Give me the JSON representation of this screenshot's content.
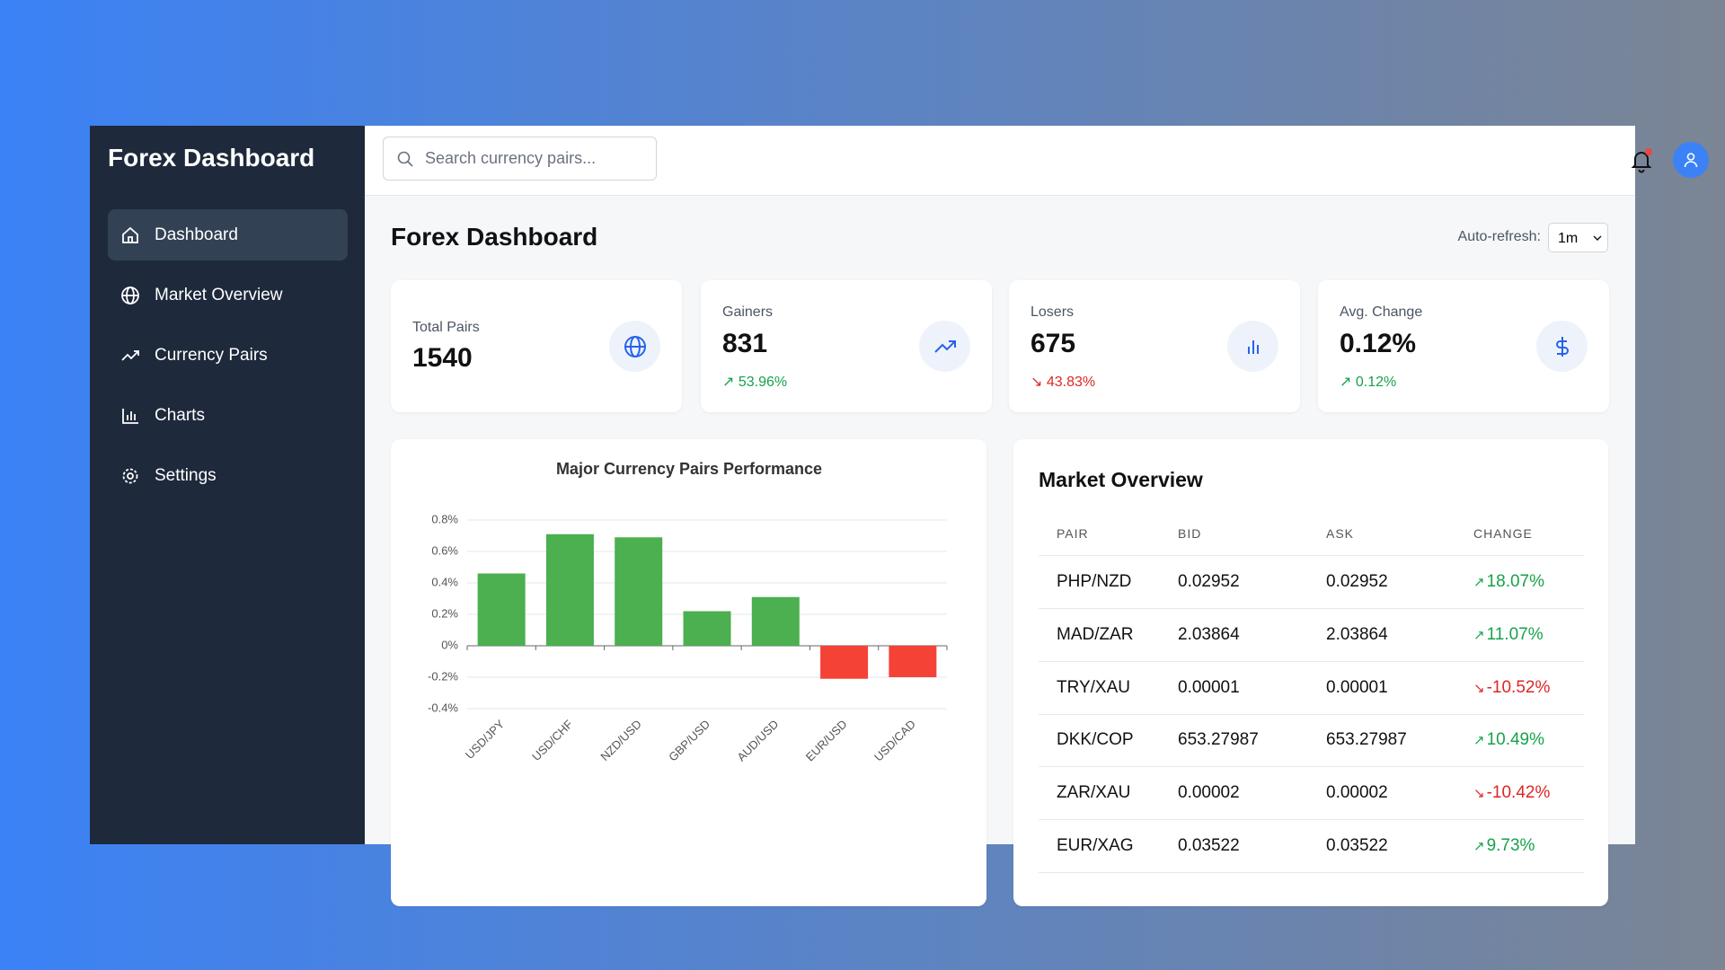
{
  "sidebar": {
    "title": "Forex Dashboard",
    "nav": [
      "Dashboard",
      "Market Overview",
      "Currency Pairs",
      "Charts",
      "Settings"
    ]
  },
  "topbar": {
    "search_placeholder": "Search currency pairs..."
  },
  "header": {
    "title": "Forex Dashboard",
    "auto_refresh_label": "Auto-refresh:",
    "auto_refresh_value": "1m"
  },
  "stats": [
    {
      "label": "Total Pairs",
      "value": "1540"
    },
    {
      "label": "Gainers",
      "value": "831",
      "change": "53.96%"
    },
    {
      "label": "Losers",
      "value": "675",
      "change": "43.83%"
    },
    {
      "label": "Avg. Change",
      "value": "0.12%",
      "change": "0.12%"
    }
  ],
  "chart": {
    "type": "bar",
    "title": "Major Currency Pairs Performance",
    "categories": [
      "USD/JPY",
      "USD/CHF",
      "NZD/USD",
      "GBP/USD",
      "AUD/USD",
      "EUR/USD",
      "USD/CAD"
    ],
    "values": [
      0.46,
      0.71,
      0.69,
      0.22,
      0.31,
      -0.21,
      -0.2
    ],
    "colors": [
      "#4caf50",
      "#4caf50",
      "#4caf50",
      "#4caf50",
      "#4caf50",
      "#f44336",
      "#f44336"
    ],
    "ylim": [
      -0.4,
      0.8
    ],
    "yticks": [
      {
        "value": -0.4,
        "label": "-0.4%"
      },
      {
        "value": -0.2,
        "label": "-0.2%"
      },
      {
        "value": 0,
        "label": "0%"
      },
      {
        "value": 0.2,
        "label": "0.2%"
      },
      {
        "value": 0.4,
        "label": "0.4%"
      },
      {
        "value": 0.6,
        "label": "0.6%"
      },
      {
        "value": 0.8,
        "label": "0.8%"
      }
    ],
    "grid": true
  },
  "market": {
    "title": "Market Overview",
    "columns": [
      "PAIR",
      "BID",
      "ASK",
      "CHANGE"
    ],
    "rows": [
      [
        "PHP/NZD",
        "0.02952",
        "0.02952",
        "18.07%"
      ],
      [
        "MAD/ZAR",
        "2.03864",
        "2.03864",
        "11.07%"
      ],
      [
        "TRY/XAU",
        "0.00001",
        "0.00001",
        "-10.52%"
      ],
      [
        "DKK/COP",
        "653.27987",
        "653.27987",
        "10.49%"
      ],
      [
        "ZAR/XAU",
        "0.00002",
        "0.00002",
        "-10.42%"
      ],
      [
        "EUR/XAG",
        "0.03522",
        "0.03522",
        "9.73%"
      ]
    ]
  }
}
